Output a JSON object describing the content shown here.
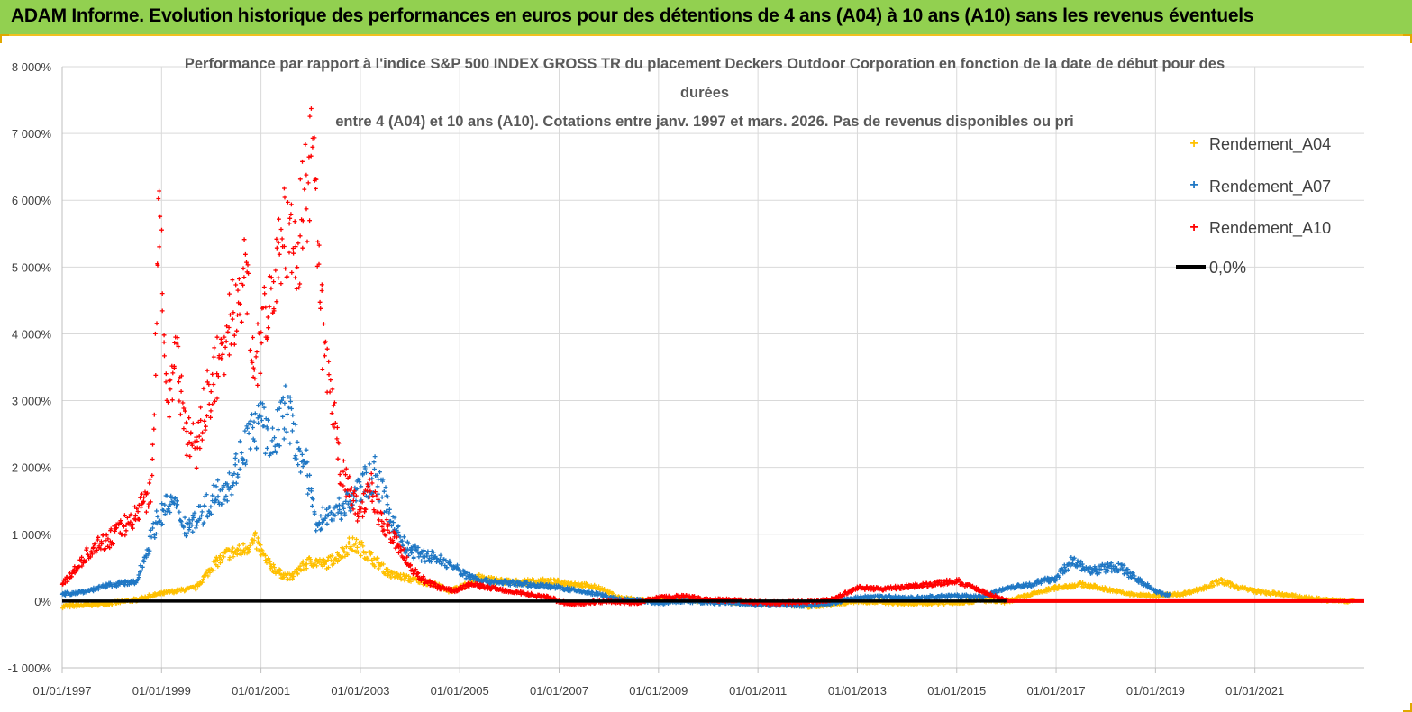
{
  "banner": {
    "title": "ADAM Informe. Evolution historique des performances en euros pour des détentions de 4 ans (A04) à 10 ans (A10) sans les revenus éventuels"
  },
  "colors": {
    "banner_bg": "#92d050",
    "a04": "#ffc000",
    "a07": "#1f77c4",
    "a10": "#ff0000",
    "zero": "#000000",
    "grid": "#d9d9d9"
  },
  "chart_data": {
    "type": "scatter",
    "title_lines": [
      "Performance par rapport à l'indice S&P 500 INDEX GROSS TR  du placement Deckers Outdoor Corporation en fonction de la date de début pour des",
      "durées",
      "entre 4 (A04) et 10 ans (A10). Cotations entre janv. 1997 et mars. 2026. Pas de revenus disponibles ou pri"
    ],
    "ylabel": "",
    "xlabel": "",
    "ylim": [
      -1000,
      8000
    ],
    "xlim": [
      1997.0,
      2023.2
    ],
    "y_ticks": [
      -1000,
      0,
      1000,
      2000,
      3000,
      4000,
      5000,
      6000,
      7000,
      8000
    ],
    "y_tick_labels": [
      "-1 000%",
      "0%",
      "1 000%",
      "2 000%",
      "3 000%",
      "4 000%",
      "5 000%",
      "6 000%",
      "7 000%",
      "8 000%"
    ],
    "x_ticks": [
      1997,
      1999,
      2001,
      2003,
      2005,
      2007,
      2009,
      2011,
      2013,
      2015,
      2017,
      2019,
      2021
    ],
    "x_tick_labels": [
      "01/01/1997",
      "01/01/1999",
      "01/01/2001",
      "01/01/2003",
      "01/01/2005",
      "01/01/2007",
      "01/01/2009",
      "01/01/2011",
      "01/01/2013",
      "01/01/2015",
      "01/01/2017",
      "01/01/2019",
      "01/01/2021"
    ],
    "legend": {
      "position": "right",
      "entries": [
        "Rendement_A04",
        "Rendement_A07",
        "Rendement_A10",
        "0,0%"
      ]
    },
    "series": [
      {
        "name": "Rendement_A04",
        "marker": "+",
        "x": [
          1997.0,
          1997.5,
          1998.0,
          1998.5,
          1998.9,
          1999.3,
          1999.7,
          2000.0,
          2000.3,
          2000.6,
          2000.9,
          2001.1,
          2001.4,
          2001.6,
          2001.8,
          2002.0,
          2002.3,
          2002.6,
          2002.8,
          2003.0,
          2003.3,
          2003.6,
          2003.9,
          2004.2,
          2004.5,
          2004.8,
          2005.0,
          2005.4,
          2005.8,
          2006.2,
          2006.6,
          2007.0,
          2007.4,
          2007.8,
          2008.2,
          2008.6,
          2009.0,
          2009.5,
          2010.0,
          2010.5,
          2011.0,
          2011.5,
          2012.0,
          2012.5,
          2013.0,
          2013.5,
          2014.0,
          2014.5,
          2015.0,
          2015.5,
          2016.0,
          2016.5,
          2017.0,
          2017.5,
          2018.0,
          2018.5,
          2019.0,
          2019.5,
          2020.0,
          2020.3,
          2020.7,
          2021.0,
          2021.5,
          2022.0,
          2022.5,
          2023.0
        ],
        "values": [
          -80,
          -60,
          -30,
          20,
          100,
          150,
          200,
          500,
          700,
          750,
          900,
          600,
          400,
          350,
          500,
          600,
          550,
          700,
          850,
          800,
          600,
          400,
          350,
          300,
          250,
          150,
          200,
          350,
          300,
          280,
          300,
          280,
          250,
          200,
          50,
          20,
          10,
          20,
          0,
          -20,
          -30,
          -40,
          -80,
          -50,
          0,
          -20,
          -40,
          -30,
          -20,
          10,
          -10,
          100,
          200,
          250,
          180,
          100,
          80,
          100,
          200,
          300,
          200,
          150,
          100,
          50,
          10,
          0
        ]
      },
      {
        "name": "Rendement_A07",
        "marker": "+",
        "x": [
          1997.0,
          1997.5,
          1998.0,
          1998.5,
          1998.9,
          1999.2,
          1999.5,
          1999.8,
          2000.1,
          2000.4,
          2000.7,
          2001.0,
          2001.2,
          2001.5,
          2001.7,
          2001.9,
          2002.1,
          2002.4,
          2002.6,
          2002.8,
          2003.0,
          2003.3,
          2003.6,
          2003.9,
          2004.2,
          2004.5,
          2004.8,
          2005.1,
          2005.5,
          2005.9,
          2006.3,
          2006.7,
          2007.0,
          2007.4,
          2007.8,
          2008.2,
          2008.6,
          2009.0,
          2009.5,
          2010.0,
          2010.5,
          2011.0,
          2011.5,
          2012.0,
          2012.5,
          2013.0,
          2013.5,
          2014.0,
          2014.5,
          2015.0,
          2015.5,
          2016.0,
          2016.5,
          2017.0,
          2017.3,
          2017.7,
          2018.0,
          2018.3,
          2018.7,
          2019.0,
          2019.3
        ],
        "values": [
          100,
          150,
          250,
          280,
          1200,
          1500,
          1100,
          1300,
          1600,
          1800,
          2400,
          2700,
          2300,
          2900,
          2400,
          2000,
          1200,
          1300,
          1400,
          1500,
          1700,
          1900,
          1300,
          800,
          700,
          650,
          550,
          400,
          300,
          280,
          250,
          230,
          200,
          150,
          100,
          20,
          10,
          -30,
          0,
          -20,
          -30,
          -50,
          -50,
          -70,
          -30,
          50,
          70,
          40,
          60,
          80,
          60,
          200,
          250,
          350,
          600,
          450,
          500,
          500,
          300,
          150,
          80
        ]
      },
      {
        "name": "Rendement_A10",
        "marker": "+",
        "x": [
          1997.0,
          1997.3,
          1997.6,
          1997.9,
          1998.2,
          1998.5,
          1998.8,
          1998.95,
          1999.1,
          1999.3,
          1999.5,
          1999.7,
          1999.9,
          2000.1,
          2000.3,
          2000.5,
          2000.7,
          2000.9,
          2001.1,
          2001.3,
          2001.5,
          2001.7,
          2001.9,
          2002.05,
          2002.2,
          2002.4,
          2002.6,
          2002.8,
          2003.0,
          2003.2,
          2003.4,
          2003.6,
          2003.8,
          2004.0,
          2004.3,
          2004.6,
          2004.9,
          2005.2,
          2005.6,
          2006.0,
          2006.4,
          2006.8,
          2007.2,
          2007.6,
          2008.0,
          2008.5,
          2009.0,
          2009.5,
          2010.0,
          2010.5,
          2011.0,
          2011.5,
          2012.0,
          2012.5,
          2013.0,
          2013.5,
          2014.0,
          2014.5,
          2015.0,
          2015.5,
          2016.0
        ],
        "values": [
          250,
          500,
          800,
          900,
          1100,
          1300,
          1700,
          5800,
          3000,
          3800,
          2500,
          2300,
          3000,
          3400,
          3900,
          4500,
          4800,
          3500,
          4300,
          5000,
          5500,
          5200,
          6100,
          6700,
          4300,
          3000,
          2000,
          1600,
          1300,
          1800,
          1200,
          1000,
          800,
          500,
          300,
          200,
          150,
          250,
          200,
          150,
          100,
          50,
          -50,
          -20,
          0,
          -30,
          50,
          70,
          20,
          10,
          -20,
          -30,
          -10,
          20,
          200,
          180,
          220,
          250,
          300,
          150,
          0
        ]
      },
      {
        "name": "0,0%",
        "type": "line",
        "x": [
          1997.0,
          2023.2
        ],
        "values": [
          0,
          0
        ]
      }
    ]
  }
}
